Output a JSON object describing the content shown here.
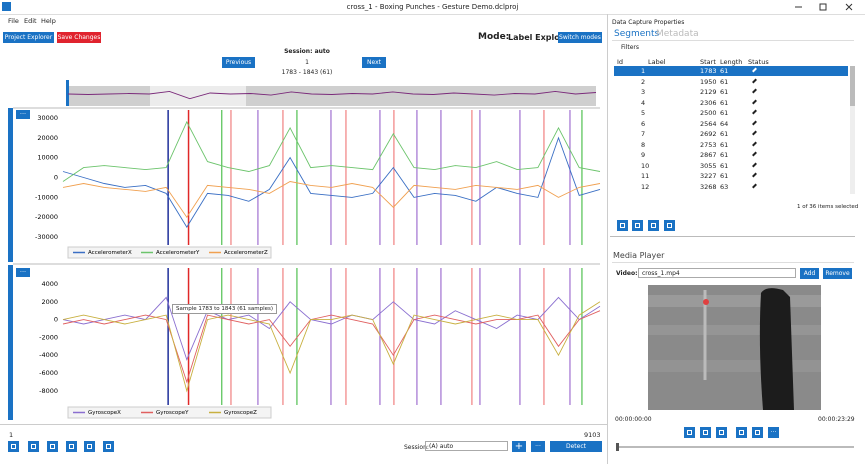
{
  "window": {
    "title": "cross_1 - Boxing Punches - Gesture Demo.dclproj"
  },
  "menu": [
    "File",
    "Edit",
    "Help"
  ],
  "toolbar": {
    "project_explorer": "Project Explorer",
    "save_changes": "Save Changes",
    "mode_label": "Mode:",
    "mode": "Label Explorer",
    "switch_modes": "Switch modes"
  },
  "session": {
    "title": "Session: auto",
    "previous": "Previous",
    "next": "Next",
    "index": "1",
    "range": "1783 - 1843 (61)"
  },
  "plot_menu_button": "···",
  "tooltip": "Sample 1783 to 1843 (61 samples)",
  "chart_data": [
    {
      "type": "line",
      "xlim": [
        1,
        9103
      ],
      "x": [
        1,
        350,
        700,
        1050,
        1400,
        1750,
        2100,
        2450,
        2800,
        3150,
        3500,
        3850,
        4200,
        4550,
        4900,
        5250,
        5600,
        5950,
        6300,
        6650,
        7000,
        7350,
        7700,
        8050,
        8400,
        8750,
        9103
      ],
      "ylim": [
        -34000,
        34000
      ],
      "yticks": [
        30000,
        20000,
        10000,
        0,
        -10000,
        -20000,
        -30000
      ],
      "grid": false,
      "series": [
        {
          "name": "AccelerometerX",
          "color": "#3a6fc4",
          "values": [
            3000,
            0,
            -3000,
            -5000,
            -4000,
            -8000,
            -25000,
            -8000,
            -9000,
            -12000,
            -6000,
            10000,
            -8000,
            -9000,
            -10000,
            -8000,
            5000,
            -10000,
            -8000,
            -9000,
            -12000,
            -5000,
            -8000,
            -10000,
            20000,
            -9000,
            -6000
          ]
        },
        {
          "name": "AccelerometerY",
          "color": "#6cc46c",
          "values": [
            -2000,
            5000,
            6000,
            5000,
            4000,
            5000,
            28000,
            8000,
            5000,
            3000,
            6000,
            25000,
            5000,
            6000,
            5000,
            4000,
            22000,
            5000,
            4000,
            6000,
            5000,
            8000,
            4000,
            5000,
            25000,
            5000,
            3000
          ]
        },
        {
          "name": "AccelerometerZ",
          "color": "#f0a050",
          "values": [
            -5000,
            -3000,
            -5000,
            -6000,
            -7000,
            -5000,
            -20000,
            -4000,
            -5000,
            -6000,
            -8000,
            -2000,
            -4000,
            -5000,
            -3000,
            -5000,
            -15000,
            -4000,
            -5000,
            -6000,
            -4000,
            -5000,
            -6000,
            -4000,
            -10000,
            -5000,
            -3000
          ]
        }
      ],
      "markers": [
        {
          "x": 1783,
          "color": "#1f2f9a"
        },
        {
          "x": 2129,
          "color": "#e02828"
        },
        {
          "x": 2692,
          "color": "#50c050"
        },
        {
          "x": 2848,
          "color": "#f08080"
        },
        {
          "x": 3305,
          "color": "#a070d0"
        },
        {
          "x": 3729,
          "color": "#f08080"
        },
        {
          "x": 3966,
          "color": "#50c050"
        },
        {
          "x": 4543,
          "color": "#a070d0"
        },
        {
          "x": 4797,
          "color": "#f08080"
        },
        {
          "x": 5373,
          "color": "#a070d0"
        },
        {
          "x": 5610,
          "color": "#f08080"
        },
        {
          "x": 6000,
          "color": "#a070d0"
        },
        {
          "x": 6407,
          "color": "#a070d0"
        },
        {
          "x": 6932,
          "color": "#f08080"
        },
        {
          "x": 7068,
          "color": "#a070d0"
        },
        {
          "x": 7746,
          "color": "#a070d0"
        },
        {
          "x": 8153,
          "color": "#f08080"
        },
        {
          "x": 8594,
          "color": "#a070d0"
        },
        {
          "x": 8797,
          "color": "#50c050"
        }
      ]
    },
    {
      "type": "line",
      "xlim": [
        1,
        9103
      ],
      "x": [
        1,
        350,
        700,
        1050,
        1400,
        1750,
        2100,
        2450,
        2800,
        3150,
        3500,
        3850,
        4200,
        4550,
        4900,
        5250,
        5600,
        5950,
        6300,
        6650,
        7000,
        7350,
        7700,
        8050,
        8400,
        8750,
        9103
      ],
      "ylim": [
        -9600,
        5800
      ],
      "yticks": [
        4000,
        2000,
        0,
        -2000,
        -4000,
        -6000,
        -8000
      ],
      "grid": false,
      "series": [
        {
          "name": "GyroscopeX",
          "color": "#8a6fd0",
          "values": [
            0,
            -500,
            0,
            500,
            0,
            2500,
            -4500,
            1000,
            0,
            500,
            -1000,
            2000,
            0,
            -500,
            500,
            0,
            2000,
            0,
            -500,
            1000,
            0,
            -1000,
            500,
            0,
            2500,
            0,
            1500
          ]
        },
        {
          "name": "GyroscopeY",
          "color": "#e06060",
          "values": [
            -500,
            0,
            -500,
            0,
            500,
            0,
            -7000,
            500,
            0,
            -500,
            0,
            -3000,
            0,
            500,
            0,
            -500,
            -4000,
            0,
            500,
            0,
            -500,
            0,
            0,
            500,
            -3000,
            0,
            1000
          ]
        },
        {
          "name": "GyroscopeZ",
          "color": "#c8b040",
          "values": [
            0,
            500,
            0,
            -500,
            0,
            500,
            -8000,
            0,
            500,
            0,
            -500,
            -6000,
            0,
            0,
            500,
            0,
            -5000,
            500,
            0,
            -500,
            0,
            500,
            0,
            0,
            -4000,
            500,
            2000
          ]
        }
      ],
      "markers": [
        {
          "x": 1783,
          "color": "#1f2f9a"
        },
        {
          "x": 2129,
          "color": "#e02828"
        },
        {
          "x": 2692,
          "color": "#50c050"
        },
        {
          "x": 2848,
          "color": "#f08080"
        },
        {
          "x": 3305,
          "color": "#a070d0"
        },
        {
          "x": 3729,
          "color": "#f08080"
        },
        {
          "x": 3966,
          "color": "#50c050"
        },
        {
          "x": 4543,
          "color": "#a070d0"
        },
        {
          "x": 4797,
          "color": "#f08080"
        },
        {
          "x": 5373,
          "color": "#a070d0"
        },
        {
          "x": 5610,
          "color": "#f08080"
        },
        {
          "x": 6000,
          "color": "#a070d0"
        },
        {
          "x": 6407,
          "color": "#a070d0"
        },
        {
          "x": 6932,
          "color": "#f08080"
        },
        {
          "x": 7068,
          "color": "#a070d0"
        },
        {
          "x": 7746,
          "color": "#a070d0"
        },
        {
          "x": 8153,
          "color": "#f08080"
        },
        {
          "x": 8594,
          "color": "#a070d0"
        },
        {
          "x": 8797,
          "color": "#50c050"
        }
      ]
    }
  ],
  "footer": {
    "session_label": "Session:",
    "session_value": "(A) auto",
    "detect": "Detect Segments"
  },
  "properties": {
    "title": "Data Capture Properties",
    "tabs": [
      "Segments",
      "Metadata"
    ],
    "filters": "Filters",
    "columns": [
      "Id",
      "Label",
      "Start",
      "Length",
      "Status"
    ],
    "rows": [
      {
        "id": 1,
        "start": 1783,
        "length": 61
      },
      {
        "id": 2,
        "start": 1950,
        "length": 61
      },
      {
        "id": 3,
        "start": 2129,
        "length": 61
      },
      {
        "id": 4,
        "start": 2306,
        "length": 61
      },
      {
        "id": 5,
        "start": 2500,
        "length": 61
      },
      {
        "id": 6,
        "start": 2564,
        "length": 64
      },
      {
        "id": 7,
        "start": 2692,
        "length": 61
      },
      {
        "id": 8,
        "start": 2753,
        "length": 61
      },
      {
        "id": 9,
        "start": 2867,
        "length": 61
      },
      {
        "id": 10,
        "start": 3055,
        "length": 61
      },
      {
        "id": 11,
        "start": 3227,
        "length": 61
      },
      {
        "id": 12,
        "start": 3268,
        "length": 63
      }
    ],
    "selection": "1 of 36 items selected"
  },
  "media_player": {
    "title": "Media Player",
    "video_label": "Video:",
    "video": "cross_1.mp4",
    "add": "Add",
    "remove": "Remove",
    "time_start": "00:00:00:00",
    "time_end": "00:00:23:29"
  }
}
